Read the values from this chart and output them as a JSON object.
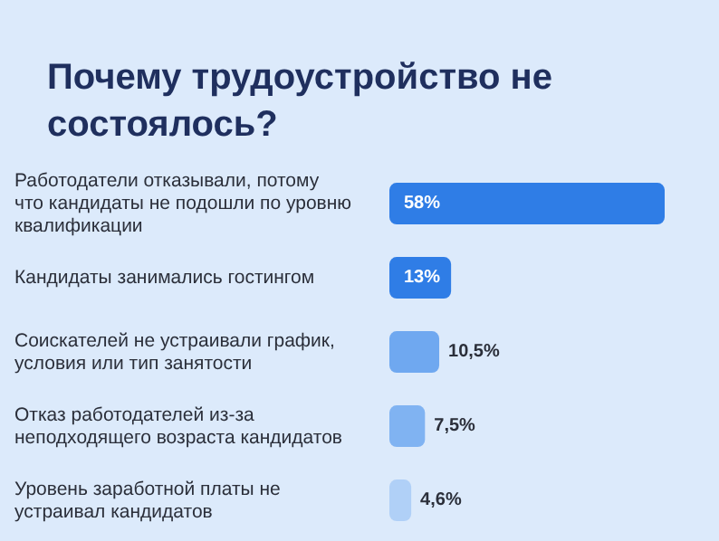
{
  "chart_data": {
    "type": "bar",
    "orientation": "horizontal",
    "title": "Почему трудоустройство не состоялось?",
    "categories": [
      "Работодатели отказывали, потому что кандидаты не подошли по уровню квалификации",
      "Кандидаты занимались гостингом",
      "Соискателей не устраивали график, условия или тип занятости",
      "Отказ работодателей из-за неподходящего возраста кандидатов",
      "Уровень заработной платы не устраивал кандидатов"
    ],
    "values": [
      58,
      13,
      10.5,
      7.5,
      4.6
    ],
    "colors": [
      "#2f7de6",
      "#2f7de6",
      "#6fa8f0",
      "#80b3f2",
      "#b0d0f7"
    ],
    "value_labels": [
      "58%",
      "13%",
      "10,5%",
      "7,5%",
      "4,6%"
    ],
    "legend": false,
    "grid": false
  }
}
